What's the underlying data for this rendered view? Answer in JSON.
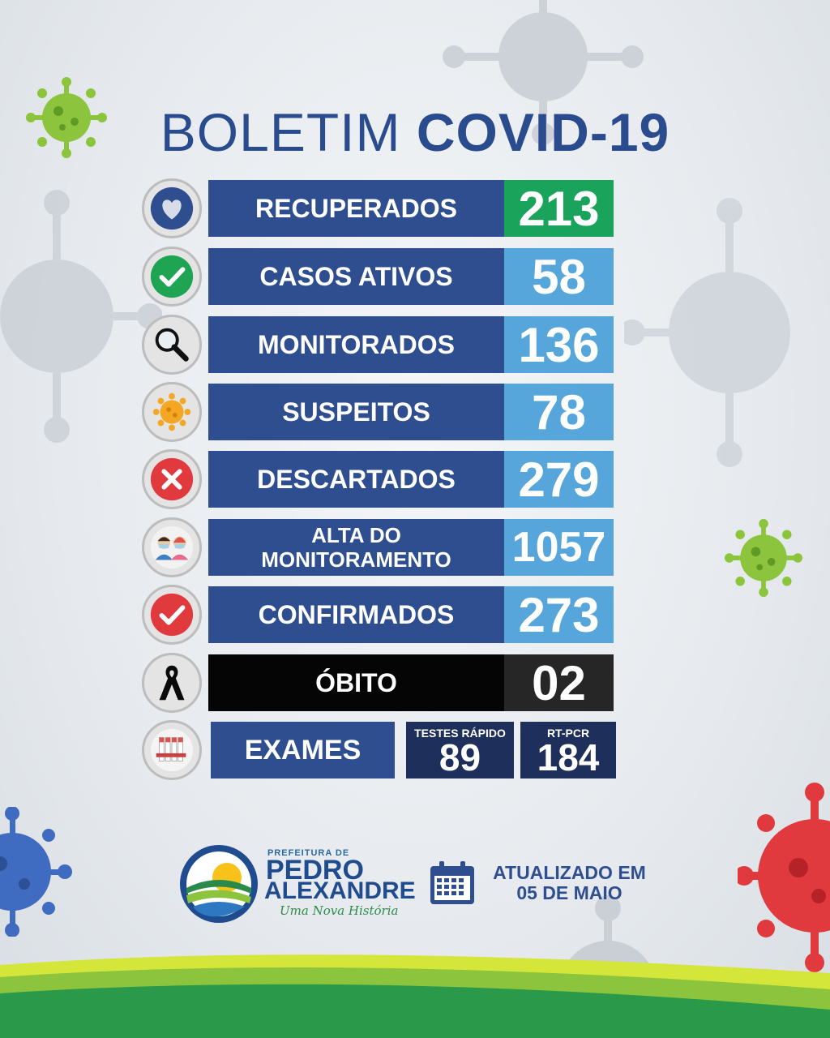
{
  "title": {
    "part1": "BOLETIM",
    "part2": "COVID-19"
  },
  "rows": [
    {
      "label": "RECUPERADOS",
      "value": "213",
      "icon": "heart-icon"
    },
    {
      "label": "CASOS ATIVOS",
      "value": "58",
      "icon": "check-icon"
    },
    {
      "label": "MONITORADOS",
      "value": "136",
      "icon": "magnifier-icon"
    },
    {
      "label": "SUSPEITOS",
      "value": "78",
      "icon": "virus-icon"
    },
    {
      "label": "DESCARTADOS",
      "value": "279",
      "icon": "x-icon"
    },
    {
      "label_line1": "ALTA DO",
      "label_line2": "MONITORAMENTO",
      "value": "1057",
      "icon": "people-icon"
    },
    {
      "label": "CONFIRMADOS",
      "value": "273",
      "icon": "red-check-icon"
    },
    {
      "label": "ÓBITO",
      "value": "02",
      "icon": "mourning-ribbon-icon"
    }
  ],
  "exams": {
    "label": "EXAMES",
    "rapid_label": "TESTES RÁPIDO",
    "rapid_value": "89",
    "pcr_label": "RT-PCR",
    "pcr_value": "184",
    "icon": "test-tubes-icon"
  },
  "footer": {
    "prefeitura": "PREFEITURA DE",
    "brand_line1": "PEDRO",
    "brand_line2": "ALEXANDRE",
    "slogan": "Uma Nova História",
    "updated_line1": "ATUALIZADO EM",
    "updated_line2": "05 DE MAIO"
  },
  "colors": {
    "navy": "#2e4e8f",
    "light_blue": "#56a6dc",
    "green": "#1aa35b",
    "black": "#050505",
    "dark": "#262626"
  }
}
